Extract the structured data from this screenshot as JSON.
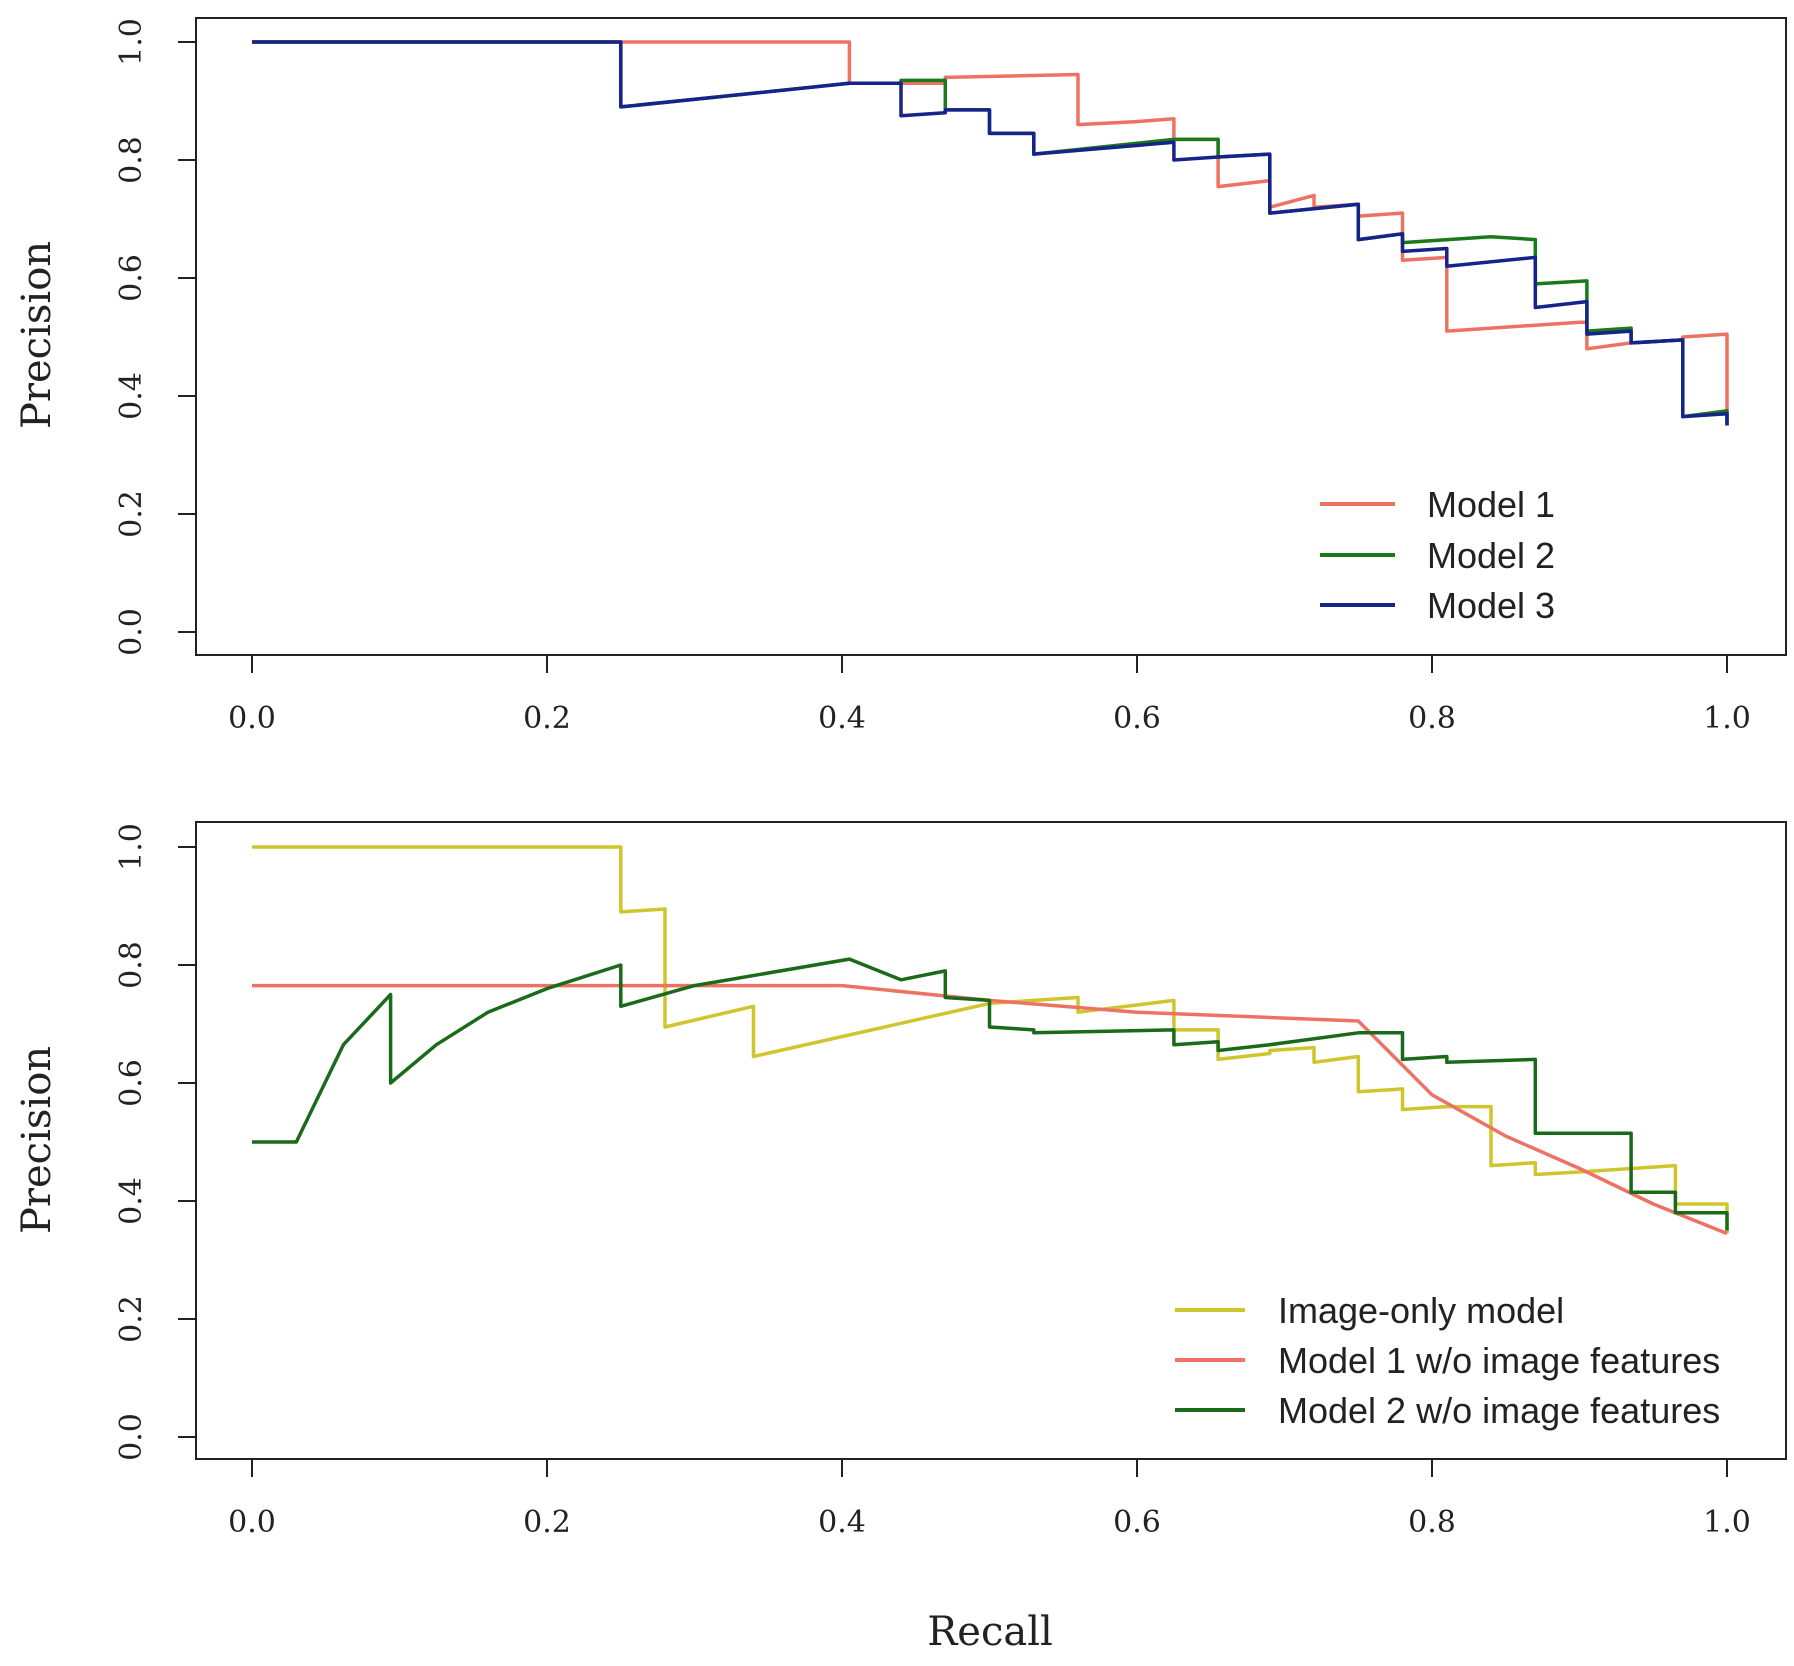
{
  "x_axis_title": "Recall",
  "colors": {
    "model1": "#ee7264",
    "model2": "#1a7a1a",
    "model3": "#16238a",
    "image_only": "#cfc52c",
    "model1_wo": "#ee7264",
    "model2_wo": "#1a6a1a",
    "axis": "#222222"
  },
  "chart_data": [
    {
      "type": "line",
      "panel": "top",
      "title": "",
      "xlabel": "",
      "ylabel": "Precision",
      "xlim": [
        0,
        1
      ],
      "ylim": [
        0,
        1
      ],
      "xticks": [
        "0.0",
        "0.2",
        "0.4",
        "0.6",
        "0.8",
        "1.0"
      ],
      "yticks": [
        "0.0",
        "0.2",
        "0.4",
        "0.6",
        "0.8",
        "1.0"
      ],
      "legend_position": "bottom-right",
      "series": [
        {
          "name": "Model 1",
          "color_key": "model1",
          "points": [
            [
              0,
              1.0
            ],
            [
              0.405,
              1.0
            ],
            [
              0.405,
              0.93
            ],
            [
              0.47,
              0.93
            ],
            [
              0.47,
              0.94
            ],
            [
              0.56,
              0.945
            ],
            [
              0.56,
              0.86
            ],
            [
              0.6,
              0.865
            ],
            [
              0.625,
              0.87
            ],
            [
              0.625,
              0.835
            ],
            [
              0.655,
              0.835
            ],
            [
              0.655,
              0.755
            ],
            [
              0.69,
              0.765
            ],
            [
              0.69,
              0.72
            ],
            [
              0.72,
              0.74
            ],
            [
              0.72,
              0.72
            ],
            [
              0.75,
              0.725
            ],
            [
              0.75,
              0.705
            ],
            [
              0.78,
              0.71
            ],
            [
              0.78,
              0.63
            ],
            [
              0.81,
              0.635
            ],
            [
              0.81,
              0.51
            ],
            [
              0.84,
              0.515
            ],
            [
              0.87,
              0.52
            ],
            [
              0.9,
              0.525
            ],
            [
              0.905,
              0.525
            ],
            [
              0.905,
              0.48
            ],
            [
              0.935,
              0.49
            ],
            [
              0.935,
              0.49
            ],
            [
              0.97,
              0.495
            ],
            [
              0.97,
              0.5
            ],
            [
              1.0,
              0.505
            ],
            [
              1.0,
              0.355
            ]
          ]
        },
        {
          "name": "Model 2",
          "color_key": "model2",
          "points": [
            [
              0,
              1.0
            ],
            [
              0.25,
              1.0
            ],
            [
              0.25,
              0.89
            ],
            [
              0.405,
              0.93
            ],
            [
              0.44,
              0.93
            ],
            [
              0.44,
              0.935
            ],
            [
              0.47,
              0.935
            ],
            [
              0.47,
              0.885
            ],
            [
              0.5,
              0.885
            ],
            [
              0.5,
              0.845
            ],
            [
              0.53,
              0.845
            ],
            [
              0.53,
              0.81
            ],
            [
              0.625,
              0.835
            ],
            [
              0.655,
              0.835
            ],
            [
              0.655,
              0.805
            ],
            [
              0.69,
              0.81
            ],
            [
              0.69,
              0.71
            ],
            [
              0.75,
              0.725
            ],
            [
              0.75,
              0.665
            ],
            [
              0.78,
              0.675
            ],
            [
              0.78,
              0.66
            ],
            [
              0.84,
              0.67
            ],
            [
              0.87,
              0.665
            ],
            [
              0.87,
              0.59
            ],
            [
              0.905,
              0.595
            ],
            [
              0.905,
              0.51
            ],
            [
              0.935,
              0.515
            ],
            [
              0.935,
              0.49
            ],
            [
              0.97,
              0.495
            ],
            [
              0.97,
              0.365
            ],
            [
              1.0,
              0.375
            ],
            [
              1.0,
              0.35
            ]
          ]
        },
        {
          "name": "Model 3",
          "color_key": "model3",
          "points": [
            [
              0,
              1.0
            ],
            [
              0.25,
              1.0
            ],
            [
              0.25,
              0.89
            ],
            [
              0.405,
              0.93
            ],
            [
              0.44,
              0.93
            ],
            [
              0.44,
              0.875
            ],
            [
              0.47,
              0.88
            ],
            [
              0.47,
              0.885
            ],
            [
              0.5,
              0.885
            ],
            [
              0.5,
              0.845
            ],
            [
              0.53,
              0.845
            ],
            [
              0.53,
              0.81
            ],
            [
              0.625,
              0.83
            ],
            [
              0.625,
              0.8
            ],
            [
              0.655,
              0.805
            ],
            [
              0.69,
              0.81
            ],
            [
              0.69,
              0.71
            ],
            [
              0.75,
              0.725
            ],
            [
              0.75,
              0.665
            ],
            [
              0.78,
              0.675
            ],
            [
              0.78,
              0.645
            ],
            [
              0.81,
              0.65
            ],
            [
              0.81,
              0.62
            ],
            [
              0.87,
              0.635
            ],
            [
              0.87,
              0.55
            ],
            [
              0.905,
              0.56
            ],
            [
              0.905,
              0.505
            ],
            [
              0.935,
              0.51
            ],
            [
              0.935,
              0.49
            ],
            [
              0.97,
              0.495
            ],
            [
              0.97,
              0.365
            ],
            [
              1.0,
              0.37
            ],
            [
              1.0,
              0.35
            ]
          ]
        }
      ]
    },
    {
      "type": "line",
      "panel": "bottom",
      "title": "",
      "xlabel": "Recall",
      "ylabel": "Precision",
      "xlim": [
        0,
        1
      ],
      "ylim": [
        0,
        1
      ],
      "xticks": [
        "0.0",
        "0.2",
        "0.4",
        "0.6",
        "0.8",
        "1.0"
      ],
      "yticks": [
        "0.0",
        "0.2",
        "0.4",
        "0.6",
        "0.8",
        "1.0"
      ],
      "legend_position": "bottom-right",
      "series": [
        {
          "name": "Image-only model",
          "color_key": "image_only",
          "points": [
            [
              0,
              1.0
            ],
            [
              0.25,
              1.0
            ],
            [
              0.25,
              0.89
            ],
            [
              0.28,
              0.895
            ],
            [
              0.28,
              0.695
            ],
            [
              0.34,
              0.73
            ],
            [
              0.34,
              0.645
            ],
            [
              0.5,
              0.735
            ],
            [
              0.53,
              0.74
            ],
            [
              0.56,
              0.745
            ],
            [
              0.56,
              0.72
            ],
            [
              0.625,
              0.74
            ],
            [
              0.625,
              0.69
            ],
            [
              0.655,
              0.69
            ],
            [
              0.655,
              0.64
            ],
            [
              0.69,
              0.65
            ],
            [
              0.69,
              0.655
            ],
            [
              0.72,
              0.66
            ],
            [
              0.72,
              0.635
            ],
            [
              0.75,
              0.645
            ],
            [
              0.75,
              0.585
            ],
            [
              0.78,
              0.59
            ],
            [
              0.78,
              0.555
            ],
            [
              0.81,
              0.56
            ],
            [
              0.84,
              0.56
            ],
            [
              0.84,
              0.46
            ],
            [
              0.87,
              0.465
            ],
            [
              0.87,
              0.445
            ],
            [
              0.905,
              0.45
            ],
            [
              0.965,
              0.46
            ],
            [
              0.965,
              0.395
            ],
            [
              1.0,
              0.395
            ],
            [
              1.0,
              0.345
            ]
          ]
        },
        {
          "name": "Model 1 w/o image features",
          "color_key": "model1_wo",
          "points": [
            [
              0,
              0.765
            ],
            [
              0.4,
              0.765
            ],
            [
              0.5,
              0.74
            ],
            [
              0.6,
              0.72
            ],
            [
              0.7,
              0.71
            ],
            [
              0.75,
              0.705
            ],
            [
              0.8,
              0.58
            ],
            [
              0.85,
              0.51
            ],
            [
              0.9,
              0.455
            ],
            [
              0.95,
              0.395
            ],
            [
              1.0,
              0.345
            ]
          ]
        },
        {
          "name": "Model 2 w/o image features",
          "color_key": "model2_wo",
          "points": [
            [
              0,
              0.5
            ],
            [
              0.03,
              0.5
            ],
            [
              0.062,
              0.665
            ],
            [
              0.094,
              0.75
            ],
            [
              0.094,
              0.6
            ],
            [
              0.125,
              0.665
            ],
            [
              0.16,
              0.72
            ],
            [
              0.2,
              0.76
            ],
            [
              0.25,
              0.8
            ],
            [
              0.25,
              0.73
            ],
            [
              0.3,
              0.765
            ],
            [
              0.405,
              0.81
            ],
            [
              0.44,
              0.775
            ],
            [
              0.47,
              0.79
            ],
            [
              0.47,
              0.745
            ],
            [
              0.5,
              0.74
            ],
            [
              0.5,
              0.695
            ],
            [
              0.53,
              0.69
            ],
            [
              0.53,
              0.685
            ],
            [
              0.625,
              0.69
            ],
            [
              0.625,
              0.665
            ],
            [
              0.655,
              0.67
            ],
            [
              0.655,
              0.655
            ],
            [
              0.69,
              0.665
            ],
            [
              0.75,
              0.685
            ],
            [
              0.78,
              0.685
            ],
            [
              0.78,
              0.64
            ],
            [
              0.81,
              0.645
            ],
            [
              0.81,
              0.635
            ],
            [
              0.87,
              0.64
            ],
            [
              0.87,
              0.515
            ],
            [
              0.905,
              0.515
            ],
            [
              0.935,
              0.515
            ],
            [
              0.935,
              0.415
            ],
            [
              0.965,
              0.415
            ],
            [
              0.965,
              0.38
            ],
            [
              1.0,
              0.38
            ],
            [
              1.0,
              0.35
            ]
          ]
        }
      ]
    }
  ]
}
